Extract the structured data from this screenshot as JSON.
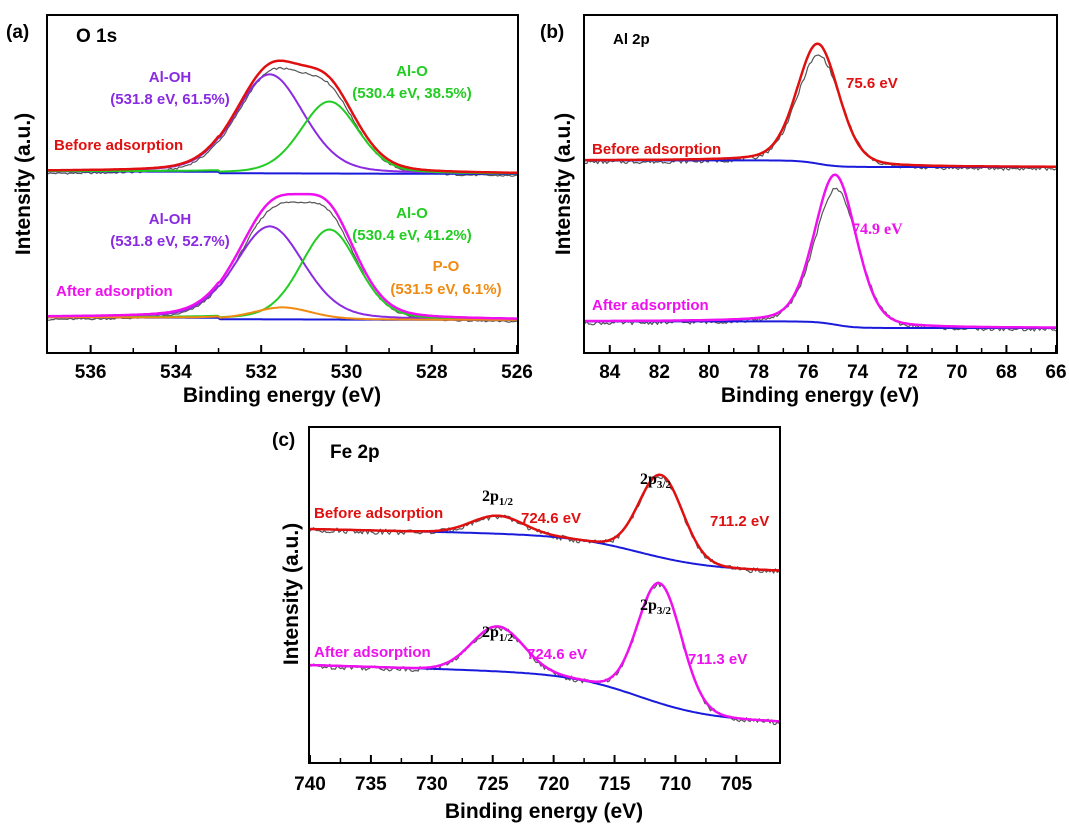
{
  "colors": {
    "raw": "#555555",
    "baseline": "#1a1adc",
    "before_fit": "#e01010",
    "after_fit": "#ee10ee",
    "al_oh": "#8a2be2",
    "al_o": "#22cc22",
    "p_o": "#f08a10"
  },
  "chart_data": [
    {
      "panel": "(a)",
      "type": "line",
      "title": "O 1s",
      "xlabel": "Binding energy (eV)",
      "ylabel": "Intensity (a.u.)",
      "xlim": [
        537,
        526
      ],
      "xticks": [
        536,
        534,
        532,
        530,
        528,
        526
      ],
      "xtick_labels": [
        "536",
        "534",
        "532",
        "530",
        "528",
        "526"
      ],
      "reversed_x": true,
      "grid": false,
      "stacked": [
        {
          "state": "Before adsorption",
          "state_color": "#e01010",
          "components": [
            {
              "name": "Al-OH",
              "center": 531.8,
              "percent": 61.5,
              "label_line1": "Al-OH",
              "label_line2": "(531.8 eV, 61.5%)",
              "color": "#8a2be2",
              "amplitude": 0.66,
              "fwhm": 1.9
            },
            {
              "name": "Al-O",
              "center": 530.4,
              "percent": 38.5,
              "label_line1": "Al-O",
              "label_line2": "(530.4 eV, 38.5%)",
              "color": "#22cc22",
              "amplitude": 0.48,
              "fwhm": 1.6
            }
          ],
          "fit_color": "#e01010",
          "baseline": [
            0.02,
            0.0
          ]
        },
        {
          "state": "After adsorption",
          "state_color": "#ee10ee",
          "components": [
            {
              "name": "Al-OH",
              "center": 531.8,
              "percent": 52.7,
              "label_line1": "Al-OH",
              "label_line2": "(531.8 eV, 52.7%)",
              "color": "#8a2be2",
              "amplitude": 0.62,
              "fwhm": 1.9
            },
            {
              "name": "Al-O",
              "center": 530.4,
              "percent": 41.2,
              "label_line1": "Al-O",
              "label_line2": "(530.4 eV, 41.2%)",
              "color": "#22cc22",
              "amplitude": 0.6,
              "fwhm": 1.6
            },
            {
              "name": "P-O",
              "center": 531.5,
              "percent": 6.1,
              "label_line1": "P-O",
              "label_line2": "(531.5 eV, 6.1%)",
              "color": "#f08a10",
              "amplitude": 0.08,
              "fwhm": 1.6
            }
          ],
          "fit_color": "#ee10ee",
          "baseline": [
            0.02,
            0.0
          ]
        }
      ]
    },
    {
      "panel": "(b)",
      "type": "line",
      "title": "Al 2p",
      "xlabel": "Binding energy (eV)",
      "ylabel": "Intensity (a.u.)",
      "xlim": [
        85,
        66
      ],
      "xticks": [
        84,
        82,
        80,
        78,
        76,
        74,
        72,
        70,
        68,
        66
      ],
      "xtick_labels": [
        "84",
        "82",
        "80",
        "78",
        "76",
        "74",
        "72",
        "70",
        "68",
        "66"
      ],
      "reversed_x": true,
      "grid": false,
      "stacked": [
        {
          "state": "Before adsorption",
          "state_color": "#e01010",
          "peak": 75.6,
          "peak_label": "75.6 eV",
          "peak_label_color": "#e01010",
          "fit_color": "#e01010",
          "amplitude": 1.0,
          "fwhm": 2.0
        },
        {
          "state": "After adsorption",
          "state_color": "#ee10ee",
          "peak": 74.9,
          "peak_label": "74.9 eV",
          "peak_label_color": "#ee10ee",
          "fit_color": "#ee10ee",
          "amplitude": 1.25,
          "fwhm": 2.0
        }
      ]
    },
    {
      "panel": "(c)",
      "type": "line",
      "title": "Fe 2p",
      "xlabel": "Binding energy (eV)",
      "ylabel": "Intensity (a.u.)",
      "xlim": [
        740,
        701.5
      ],
      "xticks": [
        740,
        735,
        730,
        725,
        720,
        715,
        710,
        705
      ],
      "xtick_labels": [
        "740",
        "735",
        "730",
        "725",
        "720",
        "715",
        "710",
        "705"
      ],
      "reversed_x": true,
      "grid": false,
      "stacked": [
        {
          "state": "Before adsorption",
          "state_color": "#e01010",
          "fit_color": "#e01010",
          "peaks": [
            {
              "orbital": "2p",
              "sub": "1/2",
              "energy": 724.6,
              "label": "724.6 eV",
              "amplitude": 0.12,
              "fwhm": 5.0
            },
            {
              "orbital": "2p",
              "sub": "3/2",
              "energy": 711.2,
              "label": "711.2 eV",
              "amplitude": 0.55,
              "fwhm": 4.2
            }
          ]
        },
        {
          "state": "After adsorption",
          "state_color": "#ee10ee",
          "fit_color": "#ee10ee",
          "peaks": [
            {
              "orbital": "2p",
              "sub": "1/2",
              "energy": 724.6,
              "label": "724.6 eV",
              "amplitude": 0.3,
              "fwhm": 5.0
            },
            {
              "orbital": "2p",
              "sub": "3/2",
              "energy": 711.3,
              "label": "711.3 eV",
              "amplitude": 0.8,
              "fwhm": 4.2
            }
          ]
        }
      ]
    }
  ]
}
